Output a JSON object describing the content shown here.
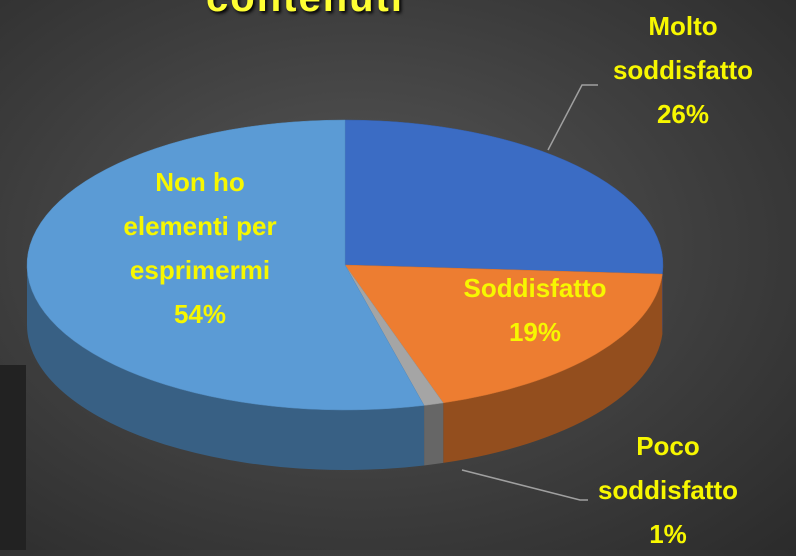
{
  "chart_data": {
    "type": "pie",
    "title": "contenuti",
    "categories": [
      "Molto soddisfatto",
      "Soddisfatto",
      "Poco soddisfatto",
      "Non ho elementi per esprimermi"
    ],
    "values": [
      26,
      19,
      1,
      54
    ],
    "value_labels": [
      "26%",
      "19%",
      "1%",
      "54%"
    ],
    "colors": [
      "#3b6cc4",
      "#ed7d31",
      "#a5a5a5",
      "#5b9bd5"
    ]
  }
}
